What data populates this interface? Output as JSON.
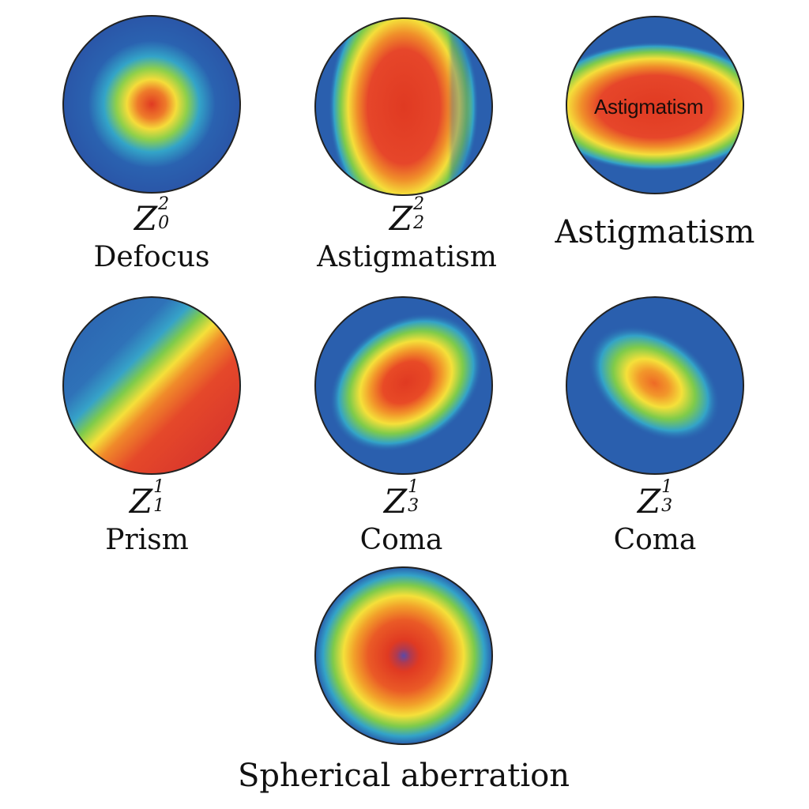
{
  "panels": [
    {
      "id": "defocus",
      "symbol": "Z",
      "sup": "2",
      "sub": "0",
      "name": "Defocus"
    },
    {
      "id": "astig-vertical",
      "symbol": "Z",
      "sup": "2",
      "sub": "2",
      "name": "Astigmatism"
    },
    {
      "id": "astig-horizontal",
      "inner_label": "Astigmatism",
      "name": "Astigmatism"
    },
    {
      "id": "prism",
      "symbol": "Z",
      "sup": "1",
      "sub": "1",
      "name": "Prism"
    },
    {
      "id": "coma-a",
      "symbol": "Z",
      "sup": "1",
      "sub": "3",
      "name": "Coma"
    },
    {
      "id": "coma-b",
      "symbol": "Z",
      "sup": "1",
      "sub": "3",
      "name": "Coma"
    },
    {
      "id": "spherical",
      "name": "Spherical aberration"
    }
  ],
  "colors": {
    "low": "#2a5fae",
    "mid_low": "#36a3c8",
    "mid": "#79c94a",
    "mid_high": "#f2e23a",
    "high_mid": "#f08a2a",
    "high": "#e03a22",
    "dip": "#5a4aa8",
    "outline": "#222222"
  }
}
